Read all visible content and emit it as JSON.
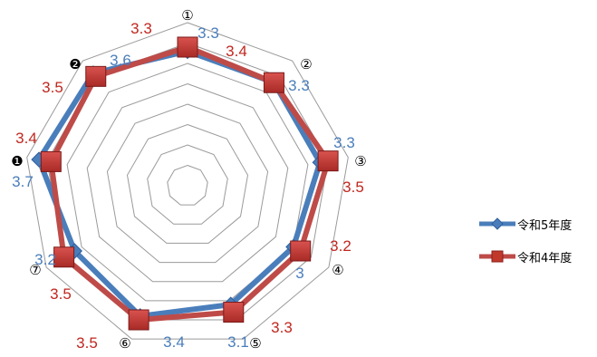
{
  "chart_data": {
    "type": "radar",
    "categories": [
      "①",
      "②",
      "③",
      "④",
      "⑤",
      "⑥",
      "⑦",
      "❶",
      "❷"
    ],
    "scale": {
      "min": 0,
      "max": 4,
      "rings": 8,
      "grid": true
    },
    "series": [
      {
        "name": "令和5年度",
        "values": [
          3.3,
          3.3,
          3.3,
          3.0,
          3.1,
          3.4,
          3.2,
          3.7,
          3.6
        ],
        "labels": [
          "3.3",
          "3.3",
          "3.3",
          "3",
          "3.1",
          "3.4",
          "3.2",
          "3.7",
          "3.6"
        ],
        "color": "#4a7ebb",
        "marker": "diamond"
      },
      {
        "name": "令和4年度",
        "values": [
          3.4,
          3.3,
          3.5,
          3.2,
          3.3,
          3.5,
          3.5,
          3.4,
          3.5
        ],
        "labels": [
          "3.4",
          "3.3",
          "3.5",
          "3.2",
          "3.3",
          "3.5",
          "3.5",
          "3.4",
          "3.5"
        ],
        "color": "#be4b48",
        "label_color": "#c0271f",
        "marker": "square"
      }
    ],
    "extra_labels": [
      {
        "text": "3.3",
        "series": 1
      }
    ],
    "legend_position": "right"
  }
}
